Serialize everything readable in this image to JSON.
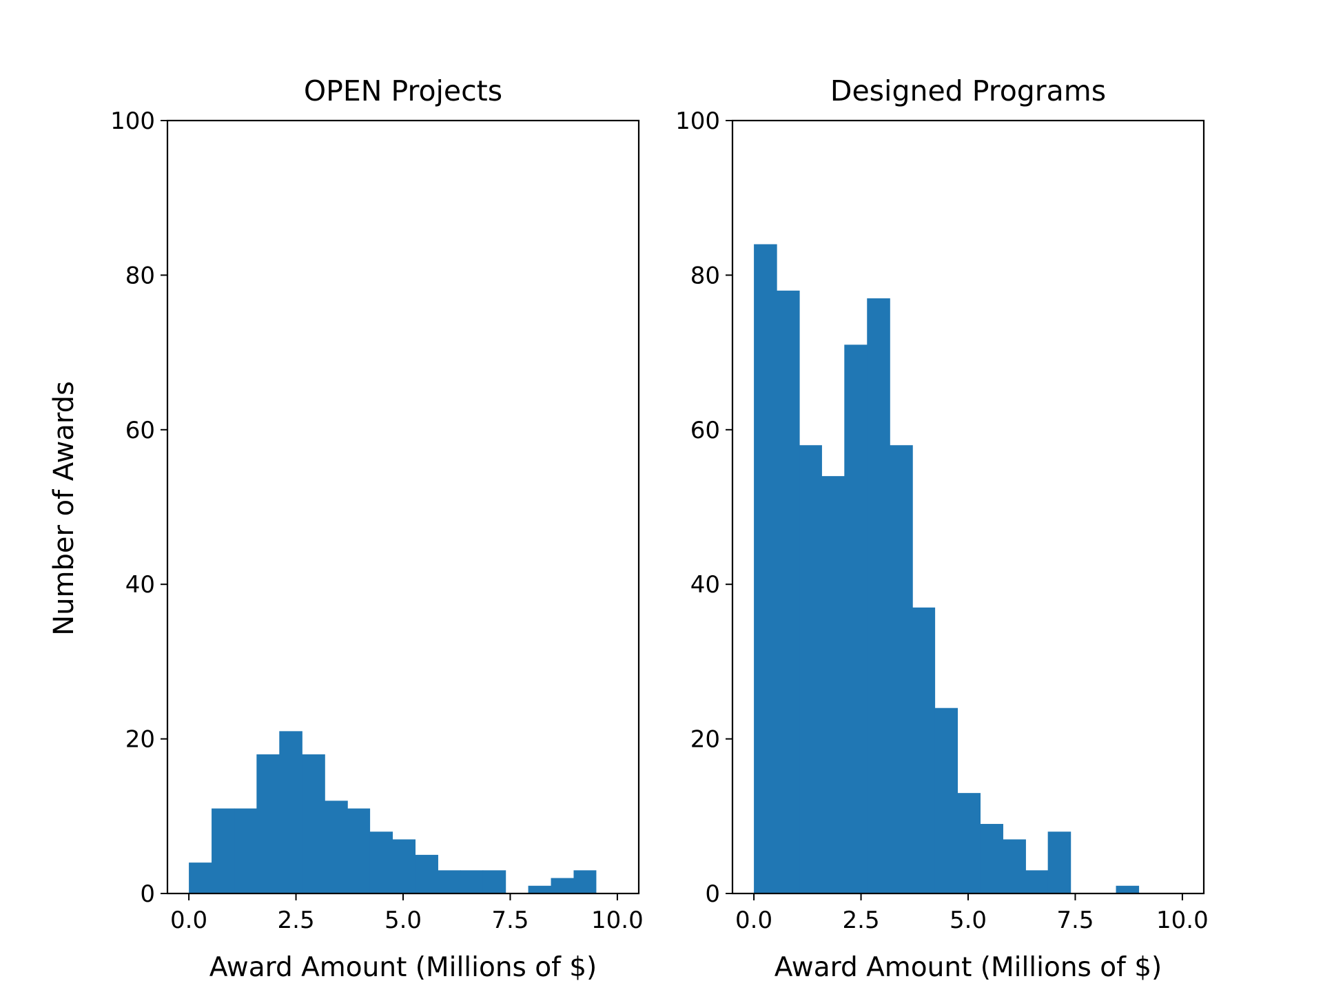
{
  "figure": {
    "ylabel": "Number of Awards"
  },
  "chart_data": [
    {
      "type": "bar",
      "title": "OPEN Projects",
      "xlabel": "Award Amount (Millions of $)",
      "ylabel": "Number of Awards",
      "xlim": [
        -0.5,
        10.5
      ],
      "ylim": [
        0,
        100
      ],
      "xticks": [
        0.0,
        2.5,
        5.0,
        7.5,
        10.0
      ],
      "xtick_labels": [
        "0.0",
        "2.5",
        "5.0",
        "7.5",
        "10.0"
      ],
      "yticks": [
        0,
        20,
        40,
        60,
        80,
        100
      ],
      "ytick_labels": [
        "0",
        "20",
        "40",
        "60",
        "80",
        "100"
      ],
      "bar_color": "#2077b4",
      "bins": [
        {
          "x0": 0.0,
          "x1": 0.53,
          "count": 4
        },
        {
          "x0": 0.53,
          "x1": 1.06,
          "count": 11
        },
        {
          "x0": 1.06,
          "x1": 1.58,
          "count": 11
        },
        {
          "x0": 1.58,
          "x1": 2.11,
          "count": 18
        },
        {
          "x0": 2.11,
          "x1": 2.64,
          "count": 21
        },
        {
          "x0": 2.64,
          "x1": 3.17,
          "count": 18
        },
        {
          "x0": 3.17,
          "x1": 3.7,
          "count": 12
        },
        {
          "x0": 3.7,
          "x1": 4.22,
          "count": 11
        },
        {
          "x0": 4.22,
          "x1": 4.75,
          "count": 8
        },
        {
          "x0": 4.75,
          "x1": 5.28,
          "count": 7
        },
        {
          "x0": 5.28,
          "x1": 5.81,
          "count": 5
        },
        {
          "x0": 5.81,
          "x1": 6.34,
          "count": 3
        },
        {
          "x0": 6.34,
          "x1": 6.86,
          "count": 3
        },
        {
          "x0": 6.86,
          "x1": 7.39,
          "count": 3
        },
        {
          "x0": 7.39,
          "x1": 7.92,
          "count": 0
        },
        {
          "x0": 7.92,
          "x1": 8.45,
          "count": 1
        },
        {
          "x0": 8.45,
          "x1": 8.98,
          "count": 2
        },
        {
          "x0": 8.98,
          "x1": 9.5,
          "count": 3
        }
      ]
    },
    {
      "type": "bar",
      "title": "Designed Programs",
      "xlabel": "Award Amount (Millions of $)",
      "ylabel": "",
      "xlim": [
        -0.5,
        10.5
      ],
      "ylim": [
        0,
        100
      ],
      "xticks": [
        0.0,
        2.5,
        5.0,
        7.5,
        10.0
      ],
      "xtick_labels": [
        "0.0",
        "2.5",
        "5.0",
        "7.5",
        "10.0"
      ],
      "yticks": [
        0,
        20,
        40,
        60,
        80,
        100
      ],
      "ytick_labels": [
        "0",
        "20",
        "40",
        "60",
        "80",
        "100"
      ],
      "bar_color": "#2077b4",
      "bins": [
        {
          "x0": 0.0,
          "x1": 0.53,
          "count": 84
        },
        {
          "x0": 0.53,
          "x1": 1.06,
          "count": 78
        },
        {
          "x0": 1.06,
          "x1": 1.58,
          "count": 58
        },
        {
          "x0": 1.58,
          "x1": 2.11,
          "count": 54
        },
        {
          "x0": 2.11,
          "x1": 2.64,
          "count": 71
        },
        {
          "x0": 2.64,
          "x1": 3.17,
          "count": 77
        },
        {
          "x0": 3.17,
          "x1": 3.7,
          "count": 58
        },
        {
          "x0": 3.7,
          "x1": 4.22,
          "count": 37
        },
        {
          "x0": 4.22,
          "x1": 4.75,
          "count": 24
        },
        {
          "x0": 4.75,
          "x1": 5.28,
          "count": 13
        },
        {
          "x0": 5.28,
          "x1": 5.81,
          "count": 9
        },
        {
          "x0": 5.81,
          "x1": 6.34,
          "count": 7
        },
        {
          "x0": 6.34,
          "x1": 6.86,
          "count": 3
        },
        {
          "x0": 6.86,
          "x1": 7.39,
          "count": 8
        },
        {
          "x0": 7.39,
          "x1": 7.92,
          "count": 0
        },
        {
          "x0": 7.92,
          "x1": 8.45,
          "count": 0
        },
        {
          "x0": 8.45,
          "x1": 8.98,
          "count": 1
        }
      ]
    }
  ]
}
